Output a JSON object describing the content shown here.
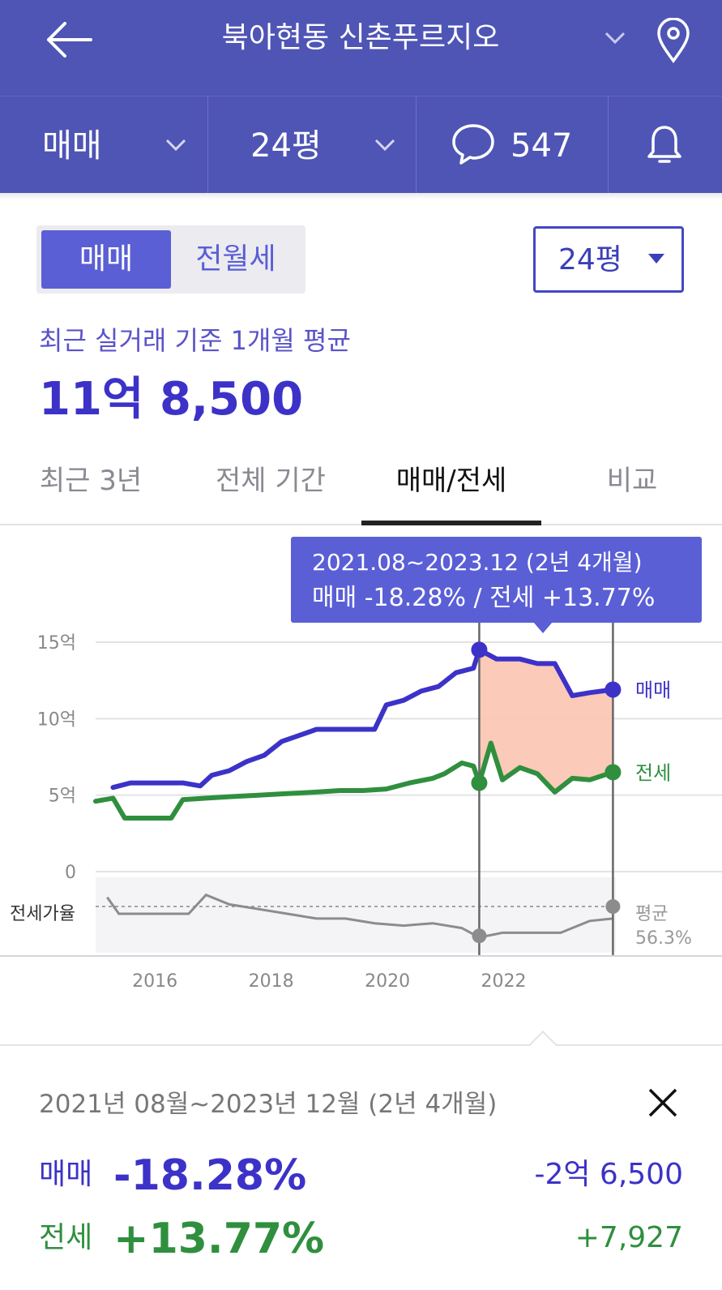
{
  "header": {
    "title": "북아현동 신촌푸르지오",
    "back_icon": "arrow-left-icon",
    "location_icon": "map-pin-icon"
  },
  "subbar": {
    "trade_type": "매매",
    "size": "24평",
    "comment_count": "547",
    "chat_icon": "chat-bubble-icon",
    "bell_icon": "bell-icon"
  },
  "segment": {
    "active": "매매",
    "inactive": "전월세"
  },
  "size_select": "24평",
  "average": {
    "label": "최근 실거래 기준 1개월 평균",
    "value": "11억 8,500"
  },
  "tabs": [
    {
      "label": "최근 3년"
    },
    {
      "label": "전체 기간"
    },
    {
      "label": "매매/전세"
    },
    {
      "label": "비교"
    }
  ],
  "chart_data": {
    "type": "line",
    "y_ticks": [
      "15억",
      "10억",
      "5억",
      "0"
    ],
    "x_ticks": [
      "2016",
      "2018",
      "2020",
      "2022"
    ],
    "ylim": [
      0,
      15
    ],
    "series": [
      {
        "name": "매매",
        "color": "#3c32c8",
        "x": [
          2015.3,
          2015.6,
          2016.0,
          2016.5,
          2016.8,
          2017.0,
          2017.3,
          2017.6,
          2017.9,
          2018.2,
          2018.5,
          2018.8,
          2019.0,
          2019.5,
          2019.8,
          2020.0,
          2020.3,
          2020.6,
          2020.9,
          2021.2,
          2021.5,
          2021.6,
          2021.9,
          2022.3,
          2022.6,
          2022.9,
          2023.2,
          2023.5,
          2023.9
        ],
        "values": [
          5.5,
          5.8,
          5.8,
          5.8,
          5.6,
          6.3,
          6.6,
          7.2,
          7.6,
          8.5,
          8.9,
          9.3,
          9.3,
          9.3,
          9.3,
          10.9,
          11.2,
          11.8,
          12.1,
          13.0,
          13.3,
          14.5,
          13.9,
          13.9,
          13.6,
          13.6,
          11.5,
          11.7,
          11.9
        ]
      },
      {
        "name": "전세",
        "color": "#2f8f3e",
        "x": [
          2015.0,
          2015.3,
          2015.5,
          2016.0,
          2016.3,
          2016.5,
          2016.9,
          2017.3,
          2017.8,
          2018.3,
          2018.8,
          2019.2,
          2019.6,
          2020.0,
          2020.4,
          2020.8,
          2021.0,
          2021.3,
          2021.5,
          2021.6,
          2021.8,
          2022.0,
          2022.3,
          2022.6,
          2022.9,
          2023.2,
          2023.5,
          2023.9
        ],
        "values": [
          4.6,
          4.8,
          3.5,
          3.5,
          3.5,
          4.7,
          4.8,
          4.9,
          5.0,
          5.1,
          5.2,
          5.3,
          5.3,
          5.4,
          5.8,
          6.1,
          6.4,
          7.1,
          6.9,
          5.8,
          8.4,
          6.0,
          6.8,
          6.4,
          5.2,
          6.1,
          6.0,
          6.5
        ]
      }
    ],
    "legend": [
      "매매",
      "전세"
    ],
    "ratio": {
      "label": "전세가율",
      "avg_label": "평균",
      "avg_value": "56.3%",
      "x": [
        2015.2,
        2015.4,
        2016.0,
        2016.6,
        2016.9,
        2017.3,
        2017.8,
        2018.3,
        2018.8,
        2019.3,
        2019.8,
        2020.3,
        2020.8,
        2021.3,
        2021.6,
        2022.0,
        2022.5,
        2023.0,
        2023.5,
        2023.9
      ],
      "values": [
        65,
        58,
        58,
        58,
        66,
        62,
        60,
        58,
        56,
        56,
        54,
        53,
        54,
        52,
        48,
        50,
        50,
        50,
        55,
        56
      ]
    },
    "selection": {
      "start": 2021.6,
      "end": 2023.9,
      "fill": "#fbc4b0"
    }
  },
  "tooltip": {
    "line1": "2021.08~2023.12 (2년 4개월)",
    "line2": "매매 -18.28%  /  전세 +13.77%"
  },
  "summary": {
    "range": "2021년 08월~2023년 12월 (2년 4개월)",
    "close_icon": "close-icon",
    "sale": {
      "label": "매매",
      "pct": "-18.28%",
      "abs": "-2억 6,500"
    },
    "jeonse": {
      "label": "전세",
      "pct": "+13.77%",
      "abs": "+7,927"
    }
  }
}
